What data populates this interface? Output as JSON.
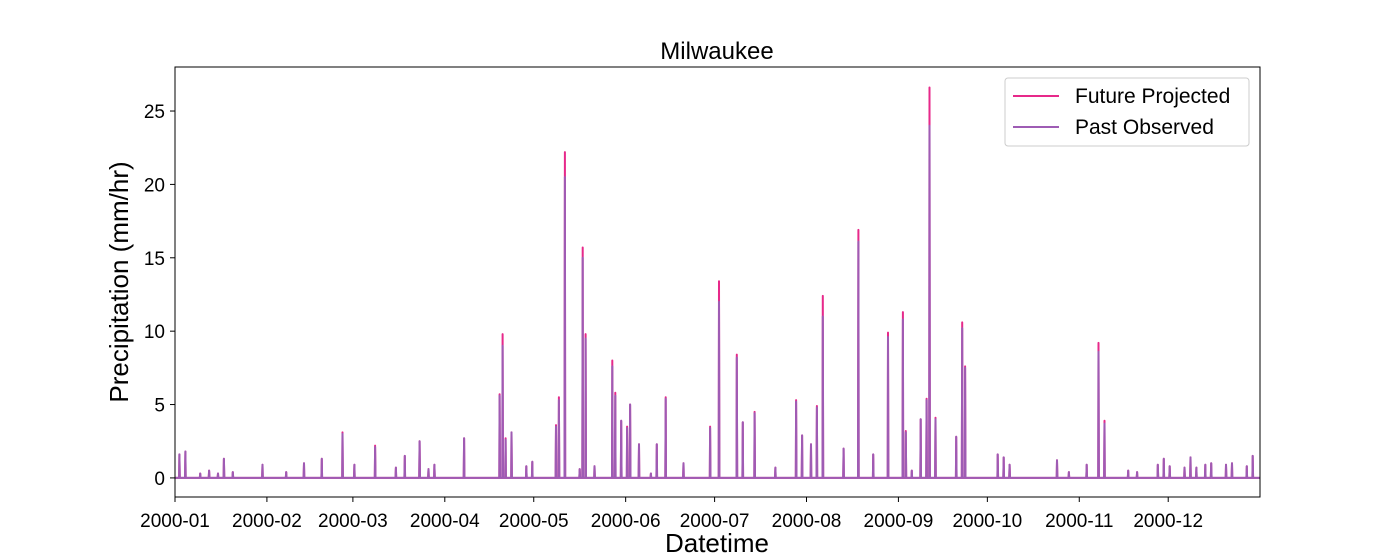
{
  "chart_data": {
    "type": "line",
    "title": "Milwaukee",
    "xlabel": "Datetime",
    "ylabel": "Precipitation (mm/hr)",
    "xlim": [
      "2000-01-01",
      "2000-12-31"
    ],
    "ylim": [
      -1.3,
      28
    ],
    "yticks": [
      0,
      5,
      10,
      15,
      20,
      25
    ],
    "xticks": [
      {
        "date": "2000-01-01",
        "label": "2000-01"
      },
      {
        "date": "2000-02-01",
        "label": "2000-02"
      },
      {
        "date": "2000-03-01",
        "label": "2000-03"
      },
      {
        "date": "2000-04-01",
        "label": "2000-04"
      },
      {
        "date": "2000-05-01",
        "label": "2000-05"
      },
      {
        "date": "2000-06-01",
        "label": "2000-06"
      },
      {
        "date": "2000-07-01",
        "label": "2000-07"
      },
      {
        "date": "2000-08-01",
        "label": "2000-08"
      },
      {
        "date": "2000-09-01",
        "label": "2000-09"
      },
      {
        "date": "2000-10-01",
        "label": "2000-10"
      },
      {
        "date": "2000-11-01",
        "label": "2000-11"
      },
      {
        "date": "2000-12-01",
        "label": "2000-12"
      }
    ],
    "grid": false,
    "legend_position": "top-right",
    "series": [
      {
        "name": "Future Projected",
        "color": "#e7298a",
        "events": [
          [
            "2000-01-02",
            1.6
          ],
          [
            "2000-01-04",
            1.8
          ],
          [
            "2000-01-09",
            0.3
          ],
          [
            "2000-01-12",
            0.5
          ],
          [
            "2000-01-15",
            0.3
          ],
          [
            "2000-01-17",
            1.3
          ],
          [
            "2000-01-20",
            0.4
          ],
          [
            "2000-01-30",
            0.9
          ],
          [
            "2000-02-07",
            0.4
          ],
          [
            "2000-02-13",
            1.0
          ],
          [
            "2000-02-19",
            1.3
          ],
          [
            "2000-02-26",
            3.1
          ],
          [
            "2000-03-01",
            0.9
          ],
          [
            "2000-03-08",
            2.2
          ],
          [
            "2000-03-15",
            0.7
          ],
          [
            "2000-03-18",
            1.5
          ],
          [
            "2000-03-23",
            2.5
          ],
          [
            "2000-03-26",
            0.6
          ],
          [
            "2000-03-28",
            0.9
          ],
          [
            "2000-04-07",
            2.7
          ],
          [
            "2000-04-19",
            5.7
          ],
          [
            "2000-04-20",
            9.8
          ],
          [
            "2000-04-21",
            2.7
          ],
          [
            "2000-04-23",
            3.1
          ],
          [
            "2000-04-28",
            0.8
          ],
          [
            "2000-04-30",
            1.1
          ],
          [
            "2000-05-08",
            3.6
          ],
          [
            "2000-05-09",
            5.5
          ],
          [
            "2000-05-11",
            22.2
          ],
          [
            "2000-05-16",
            0.6
          ],
          [
            "2000-05-17",
            15.7
          ],
          [
            "2000-05-18",
            9.8
          ],
          [
            "2000-05-21",
            0.8
          ],
          [
            "2000-05-27",
            8.0
          ],
          [
            "2000-05-28",
            5.8
          ],
          [
            "2000-05-30",
            3.9
          ],
          [
            "2000-06-01",
            3.5
          ],
          [
            "2000-06-02",
            5.0
          ],
          [
            "2000-06-05",
            2.3
          ],
          [
            "2000-06-09",
            0.3
          ],
          [
            "2000-06-11",
            2.3
          ],
          [
            "2000-06-14",
            5.5
          ],
          [
            "2000-06-20",
            1.0
          ],
          [
            "2000-06-29",
            3.5
          ],
          [
            "2000-07-02",
            13.4
          ],
          [
            "2000-07-08",
            8.4
          ],
          [
            "2000-07-10",
            3.8
          ],
          [
            "2000-07-14",
            4.5
          ],
          [
            "2000-07-21",
            0.7
          ],
          [
            "2000-07-28",
            5.3
          ],
          [
            "2000-07-30",
            2.9
          ],
          [
            "2000-08-02",
            2.3
          ],
          [
            "2000-08-04",
            4.9
          ],
          [
            "2000-08-06",
            12.4
          ],
          [
            "2000-08-13",
            2.0
          ],
          [
            "2000-08-18",
            16.9
          ],
          [
            "2000-08-23",
            1.6
          ],
          [
            "2000-08-28",
            9.9
          ],
          [
            "2000-09-02",
            11.3
          ],
          [
            "2000-09-03",
            3.2
          ],
          [
            "2000-09-05",
            0.5
          ],
          [
            "2000-09-08",
            4.0
          ],
          [
            "2000-09-10",
            5.4
          ],
          [
            "2000-09-11",
            26.6
          ],
          [
            "2000-09-13",
            4.1
          ],
          [
            "2000-09-20",
            2.8
          ],
          [
            "2000-09-22",
            10.6
          ],
          [
            "2000-09-23",
            7.6
          ],
          [
            "2000-10-04",
            1.6
          ],
          [
            "2000-10-06",
            1.4
          ],
          [
            "2000-10-08",
            0.9
          ],
          [
            "2000-10-24",
            1.2
          ],
          [
            "2000-10-28",
            0.4
          ],
          [
            "2000-11-03",
            0.9
          ],
          [
            "2000-11-07",
            9.2
          ],
          [
            "2000-11-09",
            3.9
          ],
          [
            "2000-11-17",
            0.5
          ],
          [
            "2000-11-20",
            0.4
          ],
          [
            "2000-11-27",
            0.9
          ],
          [
            "2000-11-29",
            1.3
          ],
          [
            "2000-12-01",
            0.8
          ],
          [
            "2000-12-06",
            0.7
          ],
          [
            "2000-12-08",
            1.4
          ],
          [
            "2000-12-10",
            0.7
          ],
          [
            "2000-12-13",
            0.9
          ],
          [
            "2000-12-15",
            1.0
          ],
          [
            "2000-12-20",
            0.9
          ],
          [
            "2000-12-22",
            1.0
          ],
          [
            "2000-12-27",
            0.8
          ],
          [
            "2000-12-29",
            1.5
          ]
        ]
      },
      {
        "name": "Past Observed",
        "color": "#9e5cb4",
        "events": [
          [
            "2000-01-02",
            1.6
          ],
          [
            "2000-01-04",
            1.8
          ],
          [
            "2000-01-09",
            0.3
          ],
          [
            "2000-01-12",
            0.5
          ],
          [
            "2000-01-15",
            0.3
          ],
          [
            "2000-01-17",
            1.3
          ],
          [
            "2000-01-20",
            0.4
          ],
          [
            "2000-01-30",
            0.9
          ],
          [
            "2000-02-07",
            0.4
          ],
          [
            "2000-02-13",
            1.0
          ],
          [
            "2000-02-19",
            1.3
          ],
          [
            "2000-02-26",
            3.0
          ],
          [
            "2000-03-01",
            0.9
          ],
          [
            "2000-03-08",
            2.1
          ],
          [
            "2000-03-15",
            0.7
          ],
          [
            "2000-03-18",
            1.5
          ],
          [
            "2000-03-23",
            2.5
          ],
          [
            "2000-03-26",
            0.6
          ],
          [
            "2000-03-28",
            0.9
          ],
          [
            "2000-04-07",
            2.7
          ],
          [
            "2000-04-19",
            5.6
          ],
          [
            "2000-04-20",
            9.0
          ],
          [
            "2000-04-21",
            2.6
          ],
          [
            "2000-04-23",
            3.1
          ],
          [
            "2000-04-28",
            0.8
          ],
          [
            "2000-04-30",
            1.1
          ],
          [
            "2000-05-08",
            3.5
          ],
          [
            "2000-05-09",
            5.3
          ],
          [
            "2000-05-11",
            20.5
          ],
          [
            "2000-05-16",
            0.6
          ],
          [
            "2000-05-17",
            15.0
          ],
          [
            "2000-05-18",
            9.5
          ],
          [
            "2000-05-21",
            0.8
          ],
          [
            "2000-05-27",
            7.6
          ],
          [
            "2000-05-28",
            5.6
          ],
          [
            "2000-05-30",
            3.9
          ],
          [
            "2000-06-01",
            3.4
          ],
          [
            "2000-06-02",
            5.0
          ],
          [
            "2000-06-05",
            2.3
          ],
          [
            "2000-06-09",
            0.3
          ],
          [
            "2000-06-11",
            2.3
          ],
          [
            "2000-06-14",
            5.4
          ],
          [
            "2000-06-20",
            1.0
          ],
          [
            "2000-06-29",
            3.4
          ],
          [
            "2000-07-02",
            12.0
          ],
          [
            "2000-07-08",
            8.2
          ],
          [
            "2000-07-10",
            3.8
          ],
          [
            "2000-07-14",
            4.4
          ],
          [
            "2000-07-21",
            0.7
          ],
          [
            "2000-07-28",
            5.2
          ],
          [
            "2000-07-30",
            2.9
          ],
          [
            "2000-08-02",
            2.3
          ],
          [
            "2000-08-04",
            4.8
          ],
          [
            "2000-08-06",
            11.0
          ],
          [
            "2000-08-13",
            2.0
          ],
          [
            "2000-08-18",
            16.1
          ],
          [
            "2000-08-23",
            1.6
          ],
          [
            "2000-08-28",
            9.6
          ],
          [
            "2000-09-02",
            10.8
          ],
          [
            "2000-09-03",
            3.1
          ],
          [
            "2000-09-05",
            0.5
          ],
          [
            "2000-09-08",
            4.0
          ],
          [
            "2000-09-10",
            5.3
          ],
          [
            "2000-09-11",
            24.0
          ],
          [
            "2000-09-13",
            4.0
          ],
          [
            "2000-09-20",
            2.8
          ],
          [
            "2000-09-22",
            10.2
          ],
          [
            "2000-09-23",
            7.5
          ],
          [
            "2000-10-04",
            1.6
          ],
          [
            "2000-10-06",
            1.4
          ],
          [
            "2000-10-08",
            0.9
          ],
          [
            "2000-10-24",
            1.2
          ],
          [
            "2000-10-28",
            0.4
          ],
          [
            "2000-11-03",
            0.9
          ],
          [
            "2000-11-07",
            8.6
          ],
          [
            "2000-11-09",
            3.7
          ],
          [
            "2000-11-17",
            0.5
          ],
          [
            "2000-11-20",
            0.4
          ],
          [
            "2000-11-27",
            0.9
          ],
          [
            "2000-11-29",
            1.3
          ],
          [
            "2000-12-01",
            0.8
          ],
          [
            "2000-12-06",
            0.7
          ],
          [
            "2000-12-08",
            1.4
          ],
          [
            "2000-12-10",
            0.7
          ],
          [
            "2000-12-13",
            0.9
          ],
          [
            "2000-12-15",
            1.0
          ],
          [
            "2000-12-20",
            0.9
          ],
          [
            "2000-12-22",
            1.0
          ],
          [
            "2000-12-27",
            0.8
          ],
          [
            "2000-12-29",
            1.5
          ]
        ]
      }
    ]
  }
}
